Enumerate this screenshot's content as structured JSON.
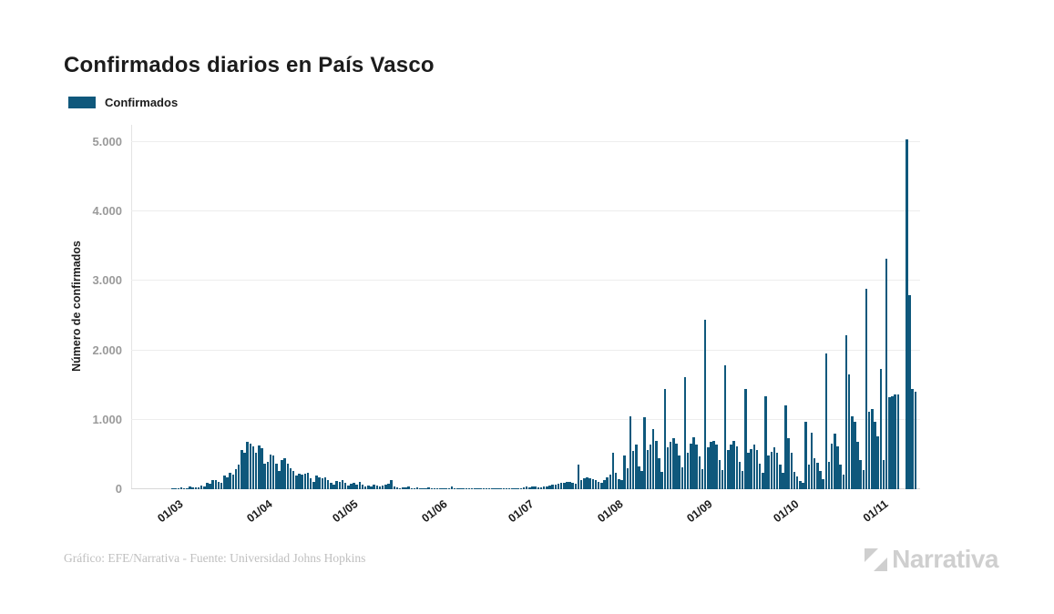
{
  "header": {
    "title": "Confirmados diarios en País Vasco"
  },
  "legend": {
    "label": "Confirmados",
    "swatch_color": "#0f587c"
  },
  "footer": {
    "credit": "Gráfico: EFE/Narrativa - Fuente: Universidad Johns Hopkins",
    "brand": "Narrativa"
  },
  "chart_data": {
    "type": "bar",
    "title": "Confirmados diarios en País Vasco",
    "series_name": "Confirmados",
    "bar_color": "#0f587c",
    "ylabel": "Número de confirmados",
    "ylim": [
      0,
      5000
    ],
    "grid": "horizontal",
    "legend_position": "top-left",
    "yticks": [
      {
        "value": 0,
        "label": "0"
      },
      {
        "value": 1000,
        "label": "1.000"
      },
      {
        "value": 2000,
        "label": "2.000"
      },
      {
        "value": 3000,
        "label": "3.000"
      },
      {
        "value": 4000,
        "label": "4.000"
      },
      {
        "value": 5000,
        "label": "5.000"
      }
    ],
    "xtick_labels": [
      "01/03",
      "01/04",
      "01/05",
      "01/06",
      "01/07",
      "01/08",
      "01/09",
      "01/10",
      "01/11"
    ],
    "months": [
      {
        "month": "02/2020",
        "xtick": null,
        "values": [
          0,
          0,
          0,
          0,
          0,
          0,
          0,
          0,
          0,
          0,
          0,
          0,
          0,
          0,
          8,
          12
        ]
      },
      {
        "month": "03/2020",
        "xtick": "01/03",
        "values": [
          15,
          20,
          18,
          14,
          35,
          28,
          22,
          30,
          55,
          45,
          95,
          80,
          125,
          132,
          110,
          97,
          195,
          175,
          240,
          210,
          285,
          350,
          570,
          526,
          680,
          658,
          615,
          526,
          635,
          590,
          373
        ]
      },
      {
        "month": "04/2020",
        "xtick": "01/04",
        "values": [
          395,
          505,
          480,
          373,
          263,
          417,
          440,
          373,
          307,
          263,
          197,
          220,
          210,
          220,
          241,
          154,
          110,
          197,
          175,
          154,
          167,
          132,
          88,
          66,
          123,
          110,
          132,
          88,
          53,
          79
        ]
      },
      {
        "month": "05/2020",
        "xtick": "01/05",
        "values": [
          97,
          66,
          110,
          66,
          44,
          53,
          35,
          66,
          53,
          35,
          53,
          66,
          79,
          132,
          35,
          22,
          18,
          26,
          22,
          35,
          18,
          13,
          22,
          9,
          13,
          18,
          22,
          13,
          9,
          13,
          9
        ]
      },
      {
        "month": "06/2020",
        "xtick": "01/06",
        "values": [
          13,
          9,
          13,
          35,
          18,
          9,
          5,
          9,
          13,
          9,
          5,
          9,
          13,
          5,
          9,
          13,
          9,
          5,
          9,
          13,
          9,
          13,
          18,
          13,
          9,
          13,
          18,
          13,
          22,
          44
        ]
      },
      {
        "month": "07/2020",
        "xtick": "01/07",
        "values": [
          26,
          35,
          44,
          31,
          22,
          40,
          44,
          53,
          62,
          66,
          79,
          88,
          97,
          110,
          105,
          92,
          79,
          350,
          132,
          154,
          175,
          160,
          145,
          130,
          110,
          92,
          130,
          175,
          210,
          525,
          240
        ]
      },
      {
        "month": "08/2020",
        "xtick": "01/08",
        "values": [
          150,
          130,
          480,
          300,
          1050,
          550,
          640,
          330,
          260,
          1035,
          560,
          640,
          870,
          700,
          440,
          250,
          1440,
          610,
          680,
          740,
          650,
          480,
          320,
          1620,
          530,
          650,
          750,
          640,
          470,
          290,
          2440
        ]
      },
      {
        "month": "09/2020",
        "xtick": "01/09",
        "values": [
          610,
          680,
          700,
          640,
          420,
          280,
          1790,
          560,
          640,
          700,
          620,
          400,
          260,
          1450,
          520,
          580,
          640,
          560,
          370,
          240,
          1340,
          480,
          540,
          600,
          520,
          350,
          230,
          1210,
          730,
          530
        ]
      },
      {
        "month": "10/2020",
        "xtick": "01/10",
        "values": [
          250,
          190,
          120,
          90,
          970,
          355,
          815,
          450,
          380,
          260,
          150,
          1955,
          400,
          660,
          795,
          620,
          350,
          210,
          2220,
          1650,
          1055,
          975,
          680,
          420,
          280,
          2885,
          1120,
          1150,
          970,
          760,
          1735
        ]
      },
      {
        "month": "11/2020",
        "xtick": "01/11",
        "values": [
          420,
          3315,
          1320,
          1340,
          1360,
          1370,
          0,
          0,
          5040,
          2790,
          1440,
          1410
        ]
      }
    ]
  }
}
